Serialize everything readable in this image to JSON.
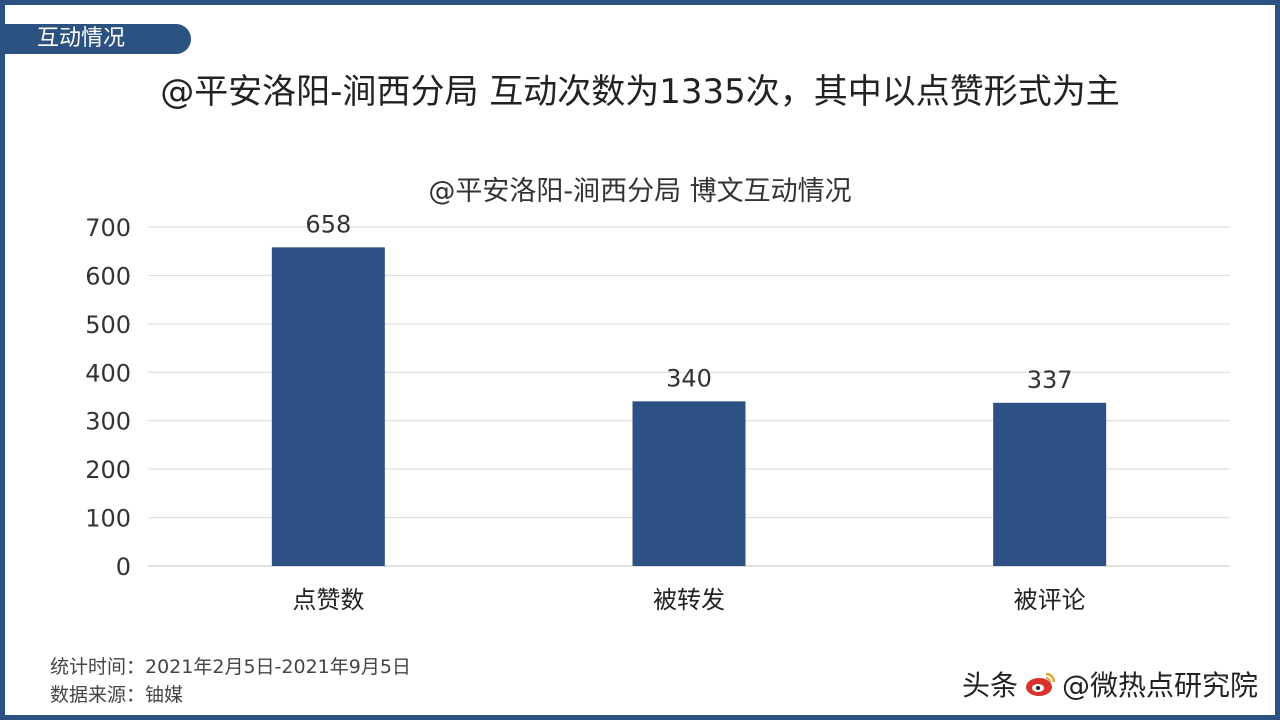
{
  "section_tag": "互动情况",
  "headline": "@平安洛阳-涧西分局 互动次数为1335次，其中以点赞形式为主",
  "footer": {
    "period": "统计时间：2021年2月5日-2021年9月5日",
    "source": "数据来源：铀媒"
  },
  "watermark": {
    "platform": "头条",
    "account": "@微热点研究院"
  },
  "colors": {
    "accent": "#2c5282",
    "bar": "#2d5184",
    "logo": "#d9312b"
  },
  "chart_data": {
    "type": "bar",
    "title": "@平安洛阳-涧西分局 博文互动情况",
    "xlabel": "",
    "ylabel": "",
    "categories": [
      "点赞数",
      "被转发",
      "被评论"
    ],
    "values": [
      658,
      340,
      337
    ],
    "data_labels": [
      "658",
      "340",
      "337"
    ],
    "ylim": [
      0,
      700
    ],
    "yticks": [
      0,
      100,
      200,
      300,
      400,
      500,
      600,
      700
    ],
    "grid": true,
    "legend": "none"
  }
}
